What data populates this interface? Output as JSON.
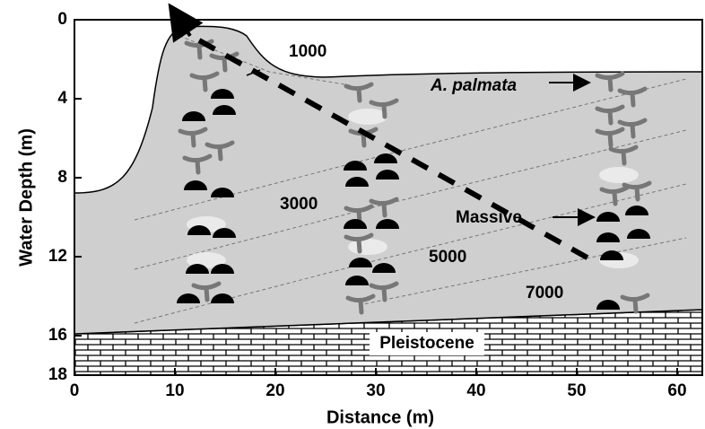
{
  "chart_data": {
    "type": "cross-section",
    "xlabel": "Distance (m)",
    "ylabel": "Water Depth (m)",
    "xlim": [
      0,
      62.5
    ],
    "xticks": [
      0,
      10,
      20,
      30,
      40,
      50,
      60
    ],
    "ylim": [
      0,
      18
    ],
    "yticks": [
      0,
      4,
      8,
      12,
      16,
      18
    ],
    "y_inverted": true,
    "annotations": [
      "1000",
      "3000",
      "5000",
      "7000",
      "A. palmata",
      "Massive",
      "Pleistocene"
    ]
  }
}
